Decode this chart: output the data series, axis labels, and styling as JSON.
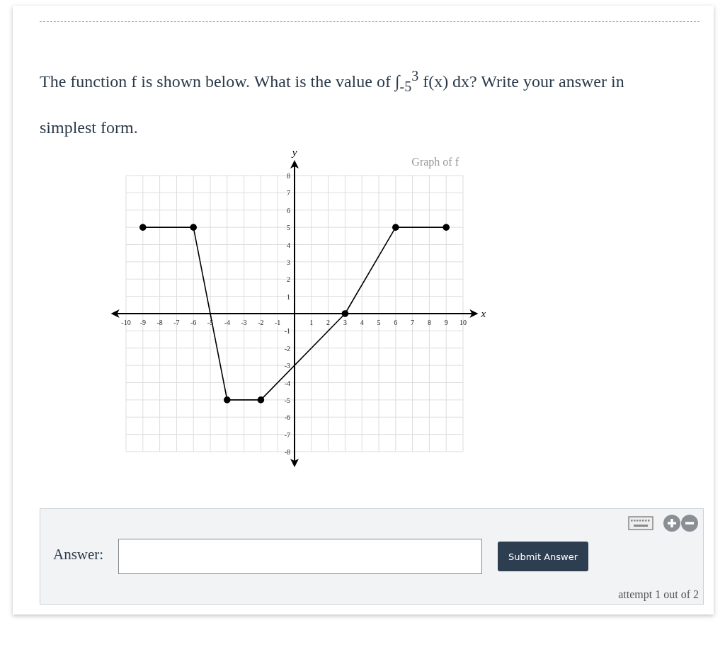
{
  "chart_data": {
    "type": "line",
    "title": "Graph of f",
    "xlabel": "x",
    "ylabel": "y",
    "x": [
      -9,
      -6,
      -4,
      -2,
      3,
      6,
      9
    ],
    "series": [
      {
        "color": "#000000",
        "values": [
          5,
          5,
          -5,
          -5,
          0,
          5,
          5
        ]
      }
    ],
    "xlim": [
      -10,
      10
    ],
    "ylim": [
      -8,
      8
    ],
    "xticks": [
      -10,
      -9,
      -8,
      -7,
      -6,
      -5,
      -4,
      -3,
      -2,
      -1,
      1,
      2,
      3,
      4,
      5,
      6,
      7,
      8,
      9,
      10
    ],
    "yticks": [
      -8,
      -7,
      -6,
      -5,
      -4,
      -3,
      -2,
      -1,
      1,
      2,
      3,
      4,
      5,
      6,
      7,
      8
    ],
    "grid": true,
    "marker": "circle",
    "line_style": "solid",
    "annotations": [
      "The function f is shown below. What is the value of ∫$_{-5}$$^{3}$ f(x) dx? Write your answer in simplest form.",
      "Answer:",
      "Submit Answer",
      "attempt 1 out of 2"
    ]
  }
}
